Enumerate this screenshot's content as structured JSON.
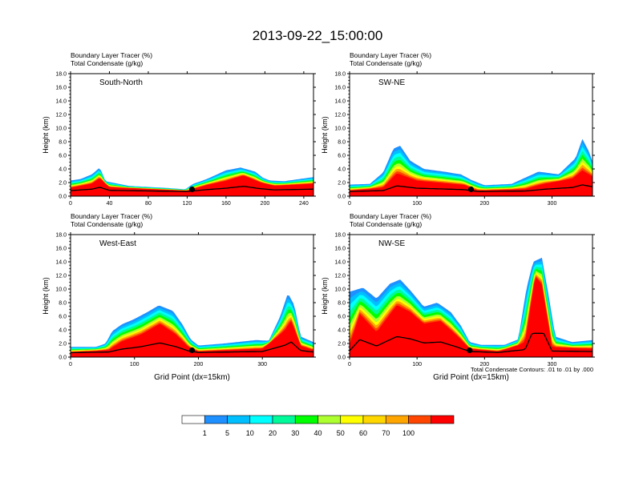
{
  "figure": {
    "title": "2013-09-22_15:00:00",
    "footnote": "Total Condensate Contours: .01 to .01 by .000"
  },
  "colorbar": {
    "labels": [
      "1",
      "5",
      "10",
      "20",
      "30",
      "40",
      "50",
      "60",
      "70",
      "100"
    ],
    "colors": [
      "#ffffff",
      "#1e90ff",
      "#00bfff",
      "#00ffff",
      "#00fa9a",
      "#00ff00",
      "#adff2f",
      "#ffff00",
      "#ffd700",
      "#ffa500",
      "#ff4500",
      "#ff0000"
    ]
  },
  "chart_data": [
    {
      "type": "heatmap",
      "panel_label": "South-North",
      "title_line1": "Boundary Layer Tracer   (%)",
      "title_line2": "Total Condensate   (g/kg)",
      "ylabel": "Height (km)",
      "xlabel": "",
      "xlim": [
        0,
        250
      ],
      "ylim": [
        0,
        18
      ],
      "xticks": [
        "0",
        "40",
        "80",
        "120",
        "160",
        "200",
        "240"
      ],
      "yticks": [
        "0.0",
        "2.0",
        "4.0",
        "6.0",
        "8.0",
        "10.0",
        "12.0",
        "14.0",
        "16.0",
        "18.0"
      ],
      "marker": {
        "x": 125,
        "y": 1.0
      },
      "tracer_top_km": [
        [
          0,
          2.3
        ],
        [
          10,
          2.5
        ],
        [
          22,
          3.2
        ],
        [
          30,
          4.2
        ],
        [
          36,
          2.2
        ],
        [
          60,
          1.5
        ],
        [
          100,
          1.2
        ],
        [
          118,
          1.0
        ],
        [
          126,
          1.8
        ],
        [
          140,
          2.5
        ],
        [
          160,
          3.8
        ],
        [
          175,
          4.2
        ],
        [
          190,
          3.6
        ],
        [
          198,
          2.7
        ],
        [
          205,
          2.3
        ],
        [
          220,
          2.2
        ],
        [
          240,
          2.6
        ],
        [
          250,
          2.8
        ]
      ],
      "tracer_peak_km": [
        [
          0,
          1.2
        ],
        [
          22,
          1.8
        ],
        [
          30,
          2.6
        ],
        [
          40,
          1.3
        ],
        [
          120,
          0.8
        ],
        [
          140,
          1.6
        ],
        [
          160,
          2.2
        ],
        [
          178,
          3.0
        ],
        [
          195,
          2.0
        ],
        [
          210,
          1.5
        ],
        [
          250,
          1.8
        ]
      ]
    },
    {
      "type": "heatmap",
      "panel_label": "SW-NE",
      "title_line1": "Boundary Layer Tracer   (%)",
      "title_line2": "Total Condensate   (g/kg)",
      "ylabel": "Height (km)",
      "xlabel": "",
      "xlim": [
        0,
        360
      ],
      "ylim": [
        0,
        18
      ],
      "xticks": [
        "0",
        "100",
        "200",
        "300"
      ],
      "yticks": [
        "0.0",
        "2.0",
        "4.0",
        "6.0",
        "8.0",
        "10.0",
        "12.0",
        "14.0",
        "16.0",
        "18.0"
      ],
      "marker": {
        "x": 180,
        "y": 1.0
      },
      "tracer_top_km": [
        [
          0,
          1.7
        ],
        [
          30,
          1.8
        ],
        [
          50,
          3.5
        ],
        [
          65,
          7.0
        ],
        [
          75,
          7.4
        ],
        [
          90,
          5.2
        ],
        [
          110,
          4.0
        ],
        [
          140,
          3.6
        ],
        [
          165,
          3.2
        ],
        [
          180,
          2.4
        ],
        [
          200,
          1.6
        ],
        [
          240,
          1.8
        ],
        [
          280,
          3.6
        ],
        [
          310,
          3.2
        ],
        [
          335,
          5.6
        ],
        [
          345,
          8.4
        ],
        [
          355,
          6.5
        ],
        [
          360,
          5.0
        ]
      ],
      "tracer_peak_km": [
        [
          0,
          0.8
        ],
        [
          50,
          1.2
        ],
        [
          70,
          3.2
        ],
        [
          100,
          2.2
        ],
        [
          170,
          1.6
        ],
        [
          190,
          0.8
        ],
        [
          260,
          1.0
        ],
        [
          290,
          1.8
        ],
        [
          330,
          2.5
        ],
        [
          345,
          3.6
        ],
        [
          360,
          2.8
        ]
      ]
    },
    {
      "type": "heatmap",
      "panel_label": "West-East",
      "title_line1": "Boundary Layer Tracer   (%)",
      "title_line2": "Total Condensate   (g/kg)",
      "ylabel": "Height (km)",
      "xlabel": "Grid Point (dx=15km)",
      "xlim": [
        0,
        380
      ],
      "ylim": [
        0,
        18
      ],
      "xticks": [
        "0",
        "100",
        "200",
        "300"
      ],
      "yticks": [
        "0.0",
        "2.0",
        "4.0",
        "6.0",
        "8.0",
        "10.0",
        "12.0",
        "14.0",
        "16.0",
        "18.0"
      ],
      "marker": {
        "x": 190,
        "y": 1.0
      },
      "tracer_top_km": [
        [
          0,
          1.5
        ],
        [
          40,
          1.5
        ],
        [
          55,
          2.0
        ],
        [
          65,
          3.8
        ],
        [
          80,
          4.8
        ],
        [
          100,
          5.6
        ],
        [
          120,
          6.6
        ],
        [
          138,
          7.6
        ],
        [
          160,
          6.8
        ],
        [
          175,
          4.8
        ],
        [
          188,
          2.6
        ],
        [
          200,
          1.7
        ],
        [
          240,
          2.0
        ],
        [
          290,
          2.5
        ],
        [
          310,
          2.4
        ],
        [
          328,
          6.0
        ],
        [
          340,
          9.4
        ],
        [
          350,
          7.6
        ],
        [
          360,
          3.0
        ],
        [
          380,
          2.2
        ]
      ],
      "tracer_peak_km": [
        [
          0,
          0.7
        ],
        [
          60,
          1.0
        ],
        [
          80,
          2.2
        ],
        [
          110,
          3.2
        ],
        [
          140,
          4.8
        ],
        [
          165,
          3.2
        ],
        [
          185,
          1.4
        ],
        [
          200,
          0.8
        ],
        [
          300,
          1.2
        ],
        [
          335,
          3.8
        ],
        [
          345,
          5.2
        ],
        [
          360,
          1.6
        ],
        [
          380,
          1.0
        ]
      ]
    },
    {
      "type": "heatmap",
      "panel_label": "NW-SE",
      "title_line1": "Boundary Layer Tracer   (%)",
      "title_line2": "Total Condensate   (g/kg)",
      "ylabel": "Height (km)",
      "xlabel": "Grid Point (dx=15km)",
      "xlim": [
        0,
        360
      ],
      "ylim": [
        0,
        18
      ],
      "xticks": [
        "0",
        "100",
        "200",
        "300"
      ],
      "yticks": [
        "0.0",
        "2.0",
        "4.0",
        "6.0",
        "8.0",
        "10.0",
        "12.0",
        "14.0",
        "16.0",
        "18.0"
      ],
      "marker": {
        "x": 178,
        "y": 1.0
      },
      "tracer_top_km": [
        [
          0,
          9.6
        ],
        [
          20,
          10.2
        ],
        [
          40,
          8.6
        ],
        [
          60,
          10.8
        ],
        [
          75,
          11.4
        ],
        [
          90,
          9.8
        ],
        [
          110,
          7.4
        ],
        [
          130,
          8.0
        ],
        [
          150,
          6.6
        ],
        [
          165,
          4.6
        ],
        [
          178,
          2.2
        ],
        [
          195,
          1.8
        ],
        [
          230,
          1.8
        ],
        [
          250,
          2.6
        ],
        [
          262,
          10.0
        ],
        [
          272,
          14.0
        ],
        [
          285,
          14.6
        ],
        [
          295,
          9.0
        ],
        [
          305,
          3.0
        ],
        [
          330,
          2.2
        ],
        [
          360,
          2.5
        ]
      ],
      "tracer_peak_km": [
        [
          0,
          1.5
        ],
        [
          15,
          6.2
        ],
        [
          40,
          3.5
        ],
        [
          70,
          7.5
        ],
        [
          90,
          6.5
        ],
        [
          110,
          4.8
        ],
        [
          135,
          5.2
        ],
        [
          160,
          3.0
        ],
        [
          178,
          1.2
        ],
        [
          220,
          0.8
        ],
        [
          260,
          2.0
        ],
        [
          275,
          11.8
        ],
        [
          285,
          10.5
        ],
        [
          300,
          1.4
        ],
        [
          360,
          1.2
        ]
      ]
    }
  ]
}
